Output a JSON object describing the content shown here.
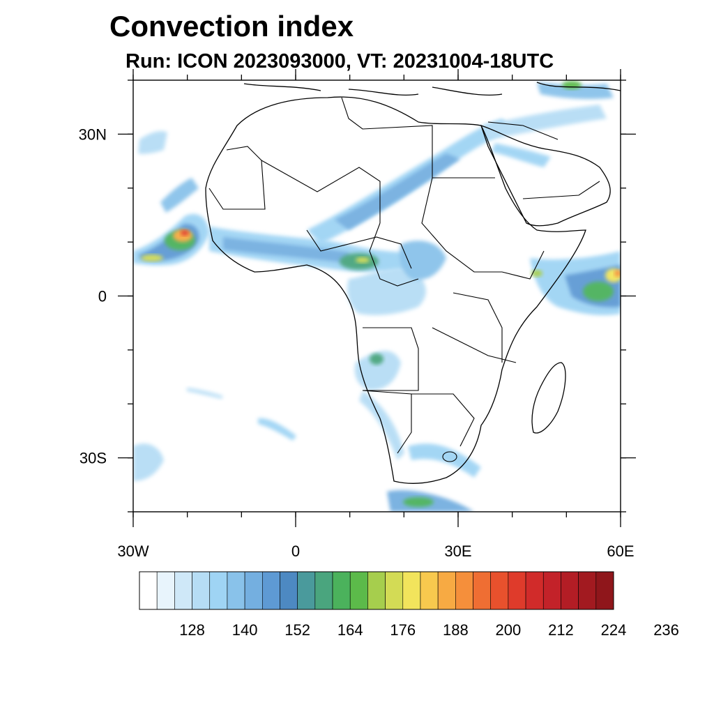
{
  "header": {
    "title": "Convection index",
    "subtitle": "Run: ICON 2023093000,  VT: 20231004-18UTC"
  },
  "map": {
    "lon_range": [
      -30,
      60
    ],
    "lat_range": [
      -40,
      40
    ],
    "lat_ticks": [
      {
        "lat": 30,
        "label": "30N"
      },
      {
        "lat": 0,
        "label": "0"
      },
      {
        "lat": -30,
        "label": "30S"
      }
    ],
    "lon_ticks": [
      {
        "lon": -30,
        "label": "30W"
      },
      {
        "lon": 0,
        "label": "0"
      },
      {
        "lon": 30,
        "label": "30E"
      },
      {
        "lon": 60,
        "label": "60E"
      }
    ],
    "minor_lon_step": 10,
    "minor_lat_step": 10,
    "features": [
      {
        "name": "tropical-atlantic-cluster",
        "level": 210
      },
      {
        "name": "arabian-sea-cluster",
        "level": 195
      },
      {
        "name": "sahel-band",
        "level": 170
      },
      {
        "name": "congo-band",
        "level": 160
      },
      {
        "name": "southern-africa-band",
        "level": 150
      }
    ]
  },
  "colorbar": {
    "colors": [
      "#ffffff",
      "#e8f4fc",
      "#cfe8f8",
      "#b6ddf5",
      "#9fd4f4",
      "#89c2ea",
      "#74afe0",
      "#5e9ad4",
      "#4d89c2",
      "#4a9a9c",
      "#4aa57e",
      "#4bb25c",
      "#5cba4a",
      "#a6ce4d",
      "#d3db55",
      "#f2e45c",
      "#f8c94e",
      "#f7aa43",
      "#f58f3b",
      "#ef6e33",
      "#e8512d",
      "#df3b2b",
      "#d12b2a",
      "#c32229",
      "#b31d25",
      "#a21a20",
      "#8f161b"
    ],
    "labels": [
      "128",
      "140",
      "152",
      "164",
      "176",
      "188",
      "200",
      "212",
      "224",
      "236"
    ]
  }
}
